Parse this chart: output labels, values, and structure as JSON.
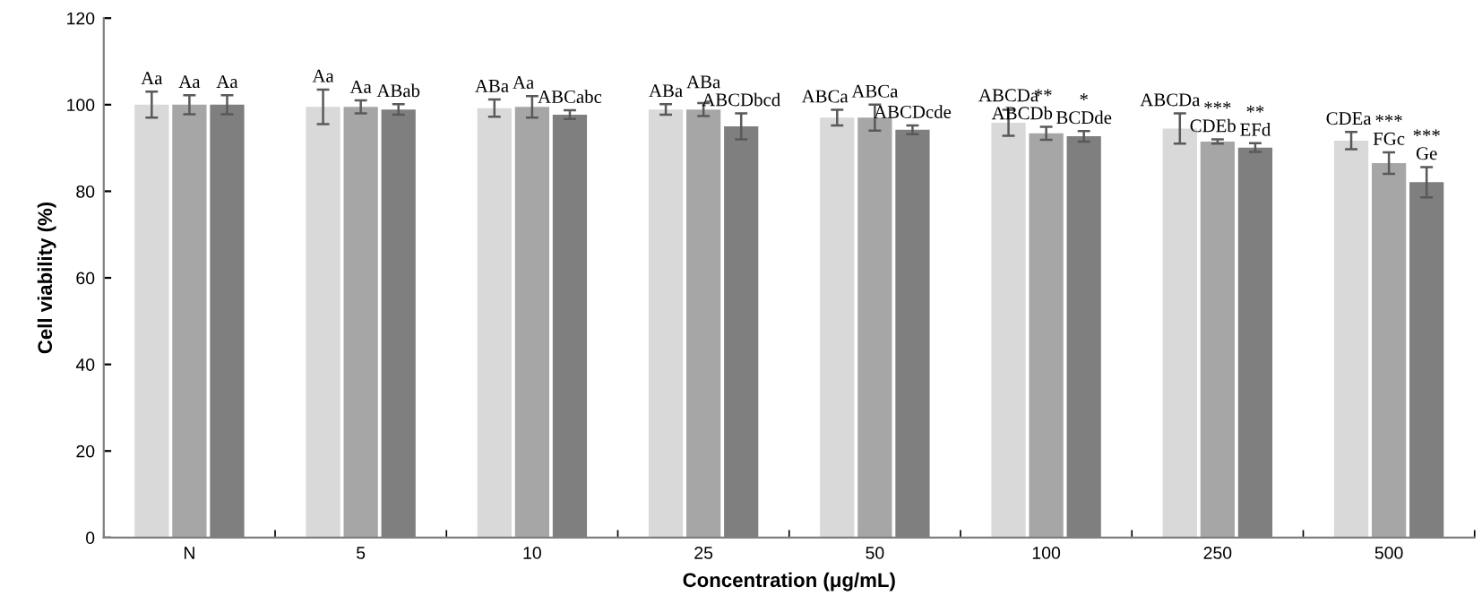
{
  "chart_data": {
    "type": "bar",
    "xlabel": "Concentration (μg/mL)",
    "ylabel": "Cell viability (%)",
    "categories": [
      "N",
      "5",
      "10",
      "25",
      "50",
      "100",
      "250",
      "500"
    ],
    "series": [
      {
        "color": "#d9d9d9",
        "values": [
          100,
          99.5,
          99.2,
          98.9,
          97.0,
          95.8,
          94.5,
          91.7
        ],
        "errors": [
          3,
          4,
          2,
          1.2,
          1.8,
          3,
          3.5,
          2
        ],
        "value_labels": [
          "Aa",
          "Aa",
          "ABa",
          "ABa",
          "ABCa",
          "ABCDa",
          "ABCDa",
          "CDEa"
        ]
      },
      {
        "color": "#a6a6a6",
        "values": [
          100,
          99.5,
          99.5,
          98.9,
          97.0,
          93.4,
          91.5,
          86.5
        ],
        "errors": [
          2.2,
          1.5,
          2.5,
          1.5,
          3,
          1.5,
          0.5,
          2.5
        ],
        "value_labels": [
          "Aa",
          "Aa",
          "Aa",
          "ABa",
          "ABCa",
          "**\nABCDb",
          "***\nCDEb",
          "***\nFGc"
        ]
      },
      {
        "color": "#7f7f7f",
        "values": [
          100,
          98.9,
          97.7,
          95.0,
          94.2,
          92.7,
          90.1,
          82.1
        ],
        "errors": [
          2.2,
          1.2,
          1,
          3,
          1,
          1.2,
          1,
          3.5
        ],
        "value_labels": [
          "Aa",
          "ABab",
          "ABCabc",
          "ABCDbcd",
          "ABCDcde",
          "*\nBCDde",
          "**\nEFd",
          "***\nGe"
        ]
      }
    ],
    "ylim": [
      0,
      120
    ],
    "yticks": [
      0,
      20,
      40,
      60,
      80,
      100,
      120
    ],
    "grid": false,
    "legend": false
  }
}
